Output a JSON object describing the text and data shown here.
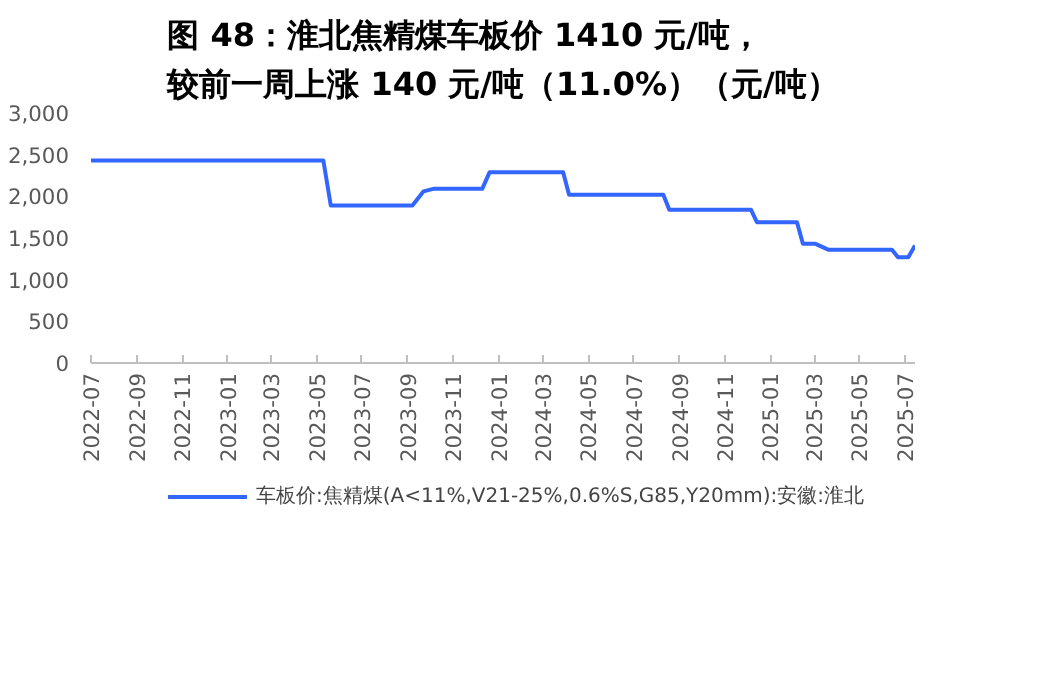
{
  "chart_data": {
    "type": "line",
    "title": "图 48：淮北焦精煤车板价 1410 元/吨，较前一周上涨 140 元/吨（11.0%）（元/吨）",
    "series": [
      {
        "name": "车板价:焦精煤(A<11%,V21-25%,0.6%S,G85,Y20mm):安徽:淮北",
        "color": "#3366ff",
        "x": [
          "2022-07-01",
          "2023-05-10",
          "2023-05-20",
          "2023-09-07",
          "2023-09-22",
          "2023-10-05",
          "2023-12-10",
          "2023-12-20",
          "2024-03-28",
          "2024-04-05",
          "2024-08-10",
          "2024-08-18",
          "2024-12-06",
          "2024-12-14",
          "2025-02-06",
          "2025-02-14",
          "2025-03-03",
          "2025-03-20",
          "2025-06-14",
          "2025-06-22",
          "2025-07-06",
          "2025-07-15"
        ],
        "values": [
          2430,
          2430,
          1890,
          1890,
          2060,
          2090,
          2090,
          2290,
          2290,
          2020,
          2020,
          1840,
          1840,
          1690,
          1690,
          1430,
          1430,
          1360,
          1360,
          1270,
          1270,
          1410
        ]
      }
    ],
    "xlim": [
      "2022-07-01",
      "2025-07-15"
    ],
    "xticks": [
      "2022-07",
      "2022-09",
      "2022-11",
      "2023-01",
      "2023-03",
      "2023-05",
      "2023-07",
      "2023-09",
      "2023-11",
      "2024-01",
      "2024-03",
      "2024-05",
      "2024-07",
      "2024-09",
      "2024-11",
      "2025-01",
      "2025-03",
      "2025-05",
      "2025-07"
    ],
    "ylim": [
      0,
      3000
    ],
    "yticks": [
      {
        "value": 0,
        "label": "0"
      },
      {
        "value": 500,
        "label": "500"
      },
      {
        "value": 1000,
        "label": "1,000"
      },
      {
        "value": 1500,
        "label": "1,500"
      },
      {
        "value": 2000,
        "label": "2,000"
      },
      {
        "value": 2500,
        "label": "2,500"
      },
      {
        "value": 3000,
        "label": "3,000"
      }
    ],
    "grid": false,
    "legend": "bottom",
    "line_style": "solid",
    "marker": "none"
  }
}
